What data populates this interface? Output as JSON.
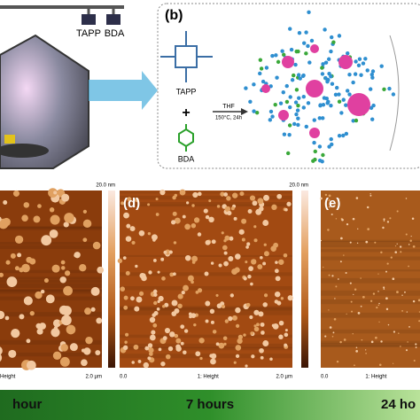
{
  "panel_a": {
    "labels": [
      "TAPP",
      "BDA"
    ]
  },
  "panel_b": {
    "tag": "(b)",
    "molecule_1": "TAPP",
    "plus": "+",
    "molecule_2": "BDA",
    "solvent": "THF",
    "conditions": "150°C, 24h"
  },
  "afm": [
    {
      "scale_top": "20.0 nm",
      "axis_left": "",
      "axis_mid": "Height",
      "axis_right": "2.0 µm"
    },
    {
      "tag": "(d)",
      "scale_top": "20.0 nm",
      "axis_left": "0.0",
      "axis_mid": "1: Height",
      "axis_right": "2.0 µm"
    },
    {
      "tag": "(e)",
      "axis_left": "0.0",
      "axis_mid": "1: Height"
    }
  ],
  "timeline": [
    "hour",
    "7 hours",
    "24 ho"
  ]
}
